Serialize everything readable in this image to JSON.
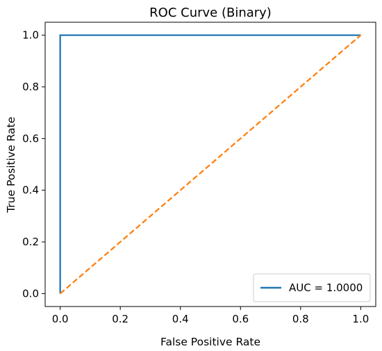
{
  "chart_data": {
    "type": "line",
    "title": "ROC Curve (Binary)",
    "xlabel": "False Positive Rate",
    "ylabel": "True Positive Rate",
    "xlim": [
      -0.05,
      1.05
    ],
    "ylim": [
      -0.05,
      1.05
    ],
    "xticks": [
      0.0,
      0.2,
      0.4,
      0.6,
      0.8,
      1.0
    ],
    "yticks": [
      0.0,
      0.2,
      0.4,
      0.6,
      0.8,
      1.0
    ],
    "xtick_labels": [
      "0.0",
      "0.2",
      "0.4",
      "0.6",
      "0.8",
      "1.0"
    ],
    "ytick_labels": [
      "0.0",
      "0.2",
      "0.4",
      "0.6",
      "0.8",
      "1.0"
    ],
    "grid": false,
    "legend_position": "lower-right",
    "series": [
      {
        "name": "AUC = 1.0000",
        "x": [
          0.0,
          0.0,
          1.0
        ],
        "y": [
          0.0,
          1.0,
          1.0
        ],
        "color": "#1f77b4",
        "linestyle": "solid"
      },
      {
        "x": [
          0.0,
          1.0
        ],
        "y": [
          0.0,
          1.0
        ],
        "color": "#ff7f0e",
        "linestyle": "dashed"
      }
    ]
  }
}
